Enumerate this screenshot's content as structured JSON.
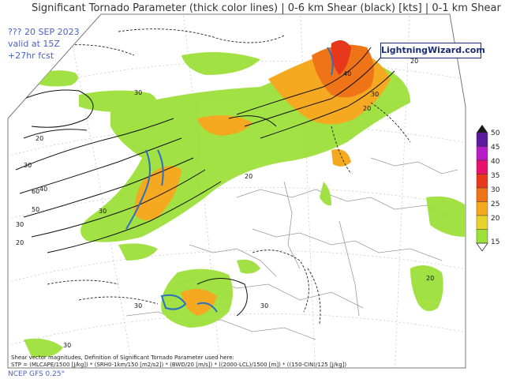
{
  "title": "Significant Tornado Parameter (thick color lines) | 0-6 km Shear (black) [kts] | 0-1 km Shear",
  "run_info": {
    "line1": "??? 20 SEP 2023",
    "line2": "valid at 15Z",
    "line3": "+27hr fcst"
  },
  "brand": "LightningWizard.com",
  "legend": {
    "labels": [
      "50",
      "45",
      "40",
      "35",
      "30",
      "25",
      "20",
      "15"
    ],
    "colors": [
      "#5c1a9e",
      "#b81ec8",
      "#e8126e",
      "#e8381c",
      "#ef7418",
      "#f5a920",
      "#e6d42c",
      "#9ee03a"
    ]
  },
  "colors": {
    "shear_light": "#9ee03a",
    "shear_mid": "#f5a920",
    "shear_high": "#ef7418",
    "stp_line": "#2b6fc2"
  },
  "contour_labels": [
    "20",
    "30",
    "40",
    "50",
    "60",
    "30",
    "20",
    "30",
    "40",
    "30",
    "20",
    "20",
    "30",
    "30",
    "20",
    "30",
    "30",
    "20"
  ],
  "footnote": {
    "line1": "Shear vector magnitudes, Definition of Significant Tornado Parameter used here:",
    "line2": "STP = (MLCAPE/1500 [J/kg]) * (SRH0-1km/150 [m2/s2]) * (BWD/20 [m/s]) * ((2000-LCL)/1500 [m]) * ((150-CIN)/125 [J/kg])"
  },
  "footer": "NCEP GFS 0.25°"
}
